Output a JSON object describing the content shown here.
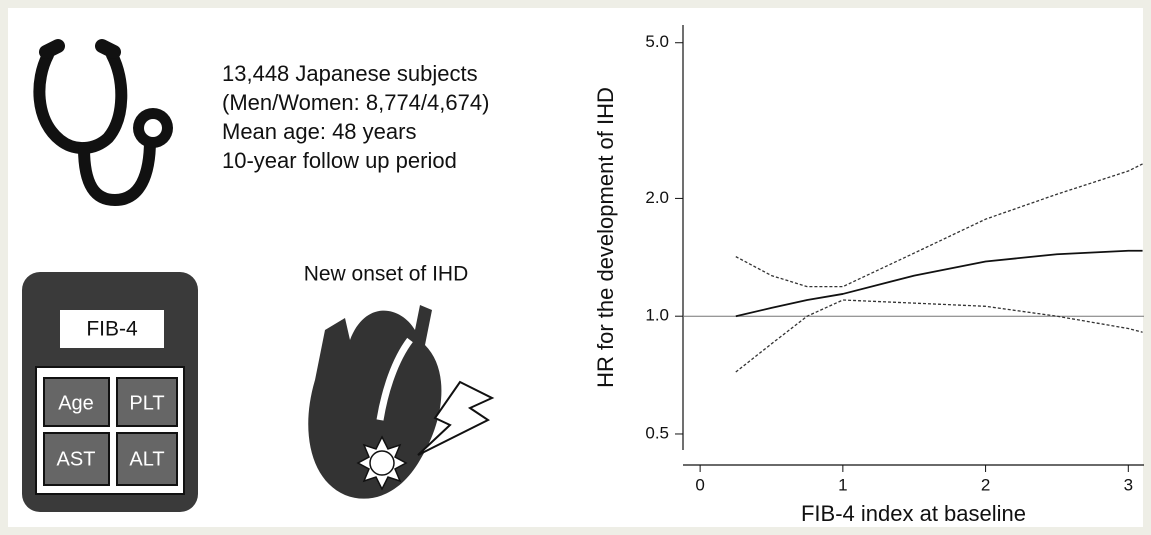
{
  "info": {
    "lines": [
      "13,448 Japanese subjects",
      "(Men/Women: 8,774/4,674)",
      "Mean age: 48 years",
      "10-year follow up period"
    ]
  },
  "outcome": "New onset of IHD",
  "calculator": {
    "title": "FIB-4",
    "keys": [
      "Age",
      "PLT",
      "AST",
      "ALT"
    ]
  },
  "chart_data": {
    "type": "line",
    "xlabel": "FIB-4 index at baseline",
    "ylabel": "HR for the development of IHD",
    "x": [
      0.25,
      0.5,
      0.75,
      1,
      1.5,
      2,
      2.5,
      3,
      3.1
    ],
    "series": [
      {
        "color": "#111111",
        "style": "solid",
        "values": [
          1.0,
          1.05,
          1.1,
          1.14,
          1.27,
          1.38,
          1.44,
          1.47,
          1.47
        ]
      },
      {
        "color": "#333333",
        "style": "dashed",
        "values": [
          1.42,
          1.27,
          1.19,
          1.19,
          1.45,
          1.77,
          2.05,
          2.35,
          2.45
        ]
      },
      {
        "color": "#333333",
        "style": "dashed",
        "values": [
          0.72,
          0.85,
          1.0,
          1.1,
          1.08,
          1.06,
          1.0,
          0.93,
          0.91
        ]
      }
    ],
    "hline": 1,
    "xlim": [
      -0.12,
      3.11
    ],
    "ylim": [
      0.455,
      5.55
    ],
    "ylog": true,
    "xticks": [
      0,
      1,
      2,
      3
    ],
    "yticks": [
      0.5,
      {
        "value": 1,
        "label": "1.0"
      },
      {
        "value": 2,
        "label": "2.0"
      },
      {
        "value": 5,
        "label": "5.0"
      }
    ]
  }
}
